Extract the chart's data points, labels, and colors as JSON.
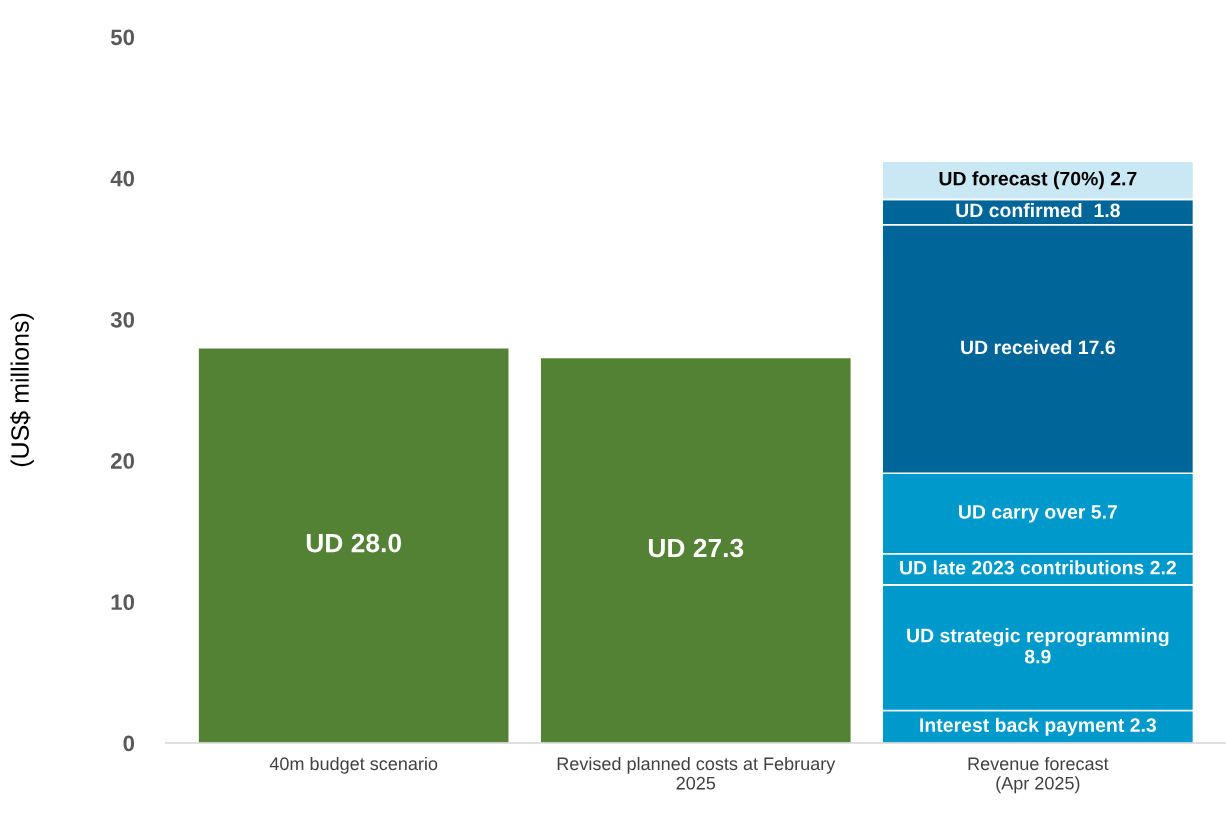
{
  "chart_data": {
    "type": "bar",
    "stacked": true,
    "ylabel": "(US$ millions)",
    "categories": [
      "40m budget scenario",
      "Revised planned costs at February\n2025",
      "Revenue forecast\n(Apr 2025)"
    ],
    "ylim": [
      0,
      50
    ],
    "yticks": [
      0,
      10,
      20,
      30,
      40,
      50
    ],
    "grid": false,
    "series": [
      {
        "color": "#548235",
        "values": [
          28.0,
          27.3,
          null
        ],
        "value_labels": [
          "UD 28.0",
          "UD 27.3",
          null
        ]
      },
      {
        "color": "#0099cc",
        "values": [
          null,
          null,
          2.3
        ],
        "value_labels": [
          null,
          null,
          "Interest back payment 2.3"
        ]
      },
      {
        "color": "#0099cc",
        "values": [
          null,
          null,
          8.9
        ],
        "value_labels": [
          null,
          null,
          "UD strategic reprogramming\n8.9"
        ]
      },
      {
        "color": "#0099cc",
        "values": [
          null,
          null,
          2.2
        ],
        "value_labels": [
          null,
          null,
          "UD late 2023 contributions 2.2"
        ]
      },
      {
        "color": "#0099cc",
        "values": [
          null,
          null,
          5.7
        ],
        "value_labels": [
          null,
          null,
          "UD carry over 5.7"
        ]
      },
      {
        "color": "#006699",
        "values": [
          null,
          null,
          17.6
        ],
        "value_labels": [
          null,
          null,
          "UD received 17.6"
        ]
      },
      {
        "color": "#006699",
        "values": [
          null,
          null,
          1.8
        ],
        "value_labels": [
          null,
          null,
          "UD confirmed  1.8"
        ]
      },
      {
        "color": "#c9e8f4",
        "values": [
          null,
          null,
          2.7
        ],
        "value_labels": [
          null,
          null,
          "UD forecast (70%) 2.7"
        ]
      }
    ]
  }
}
